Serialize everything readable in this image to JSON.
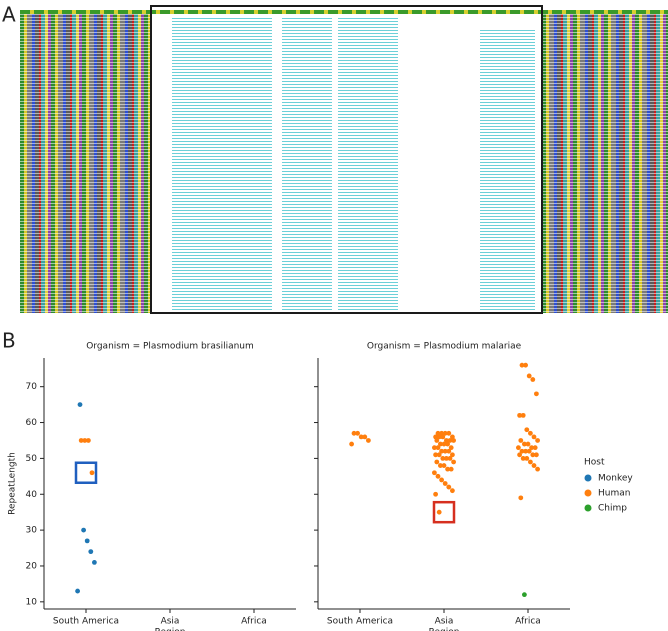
{
  "panel_labels": [
    "A",
    "B"
  ],
  "chart_data": [
    {
      "type": "strip",
      "title": "Organism = Plasmodium brasilianum",
      "categories": [
        "South America",
        "Asia",
        "Africa"
      ],
      "xlabel": "Region",
      "ylabel": "RepeatLength",
      "ylim": [
        8,
        78
      ],
      "yticks": [
        10,
        20,
        30,
        40,
        50,
        60,
        70
      ],
      "series": [
        {
          "name": "Monkey",
          "color": "#1f77b4",
          "x": [
            "South America",
            "South America",
            "South America",
            "South America",
            "South America",
            "South America"
          ],
          "values": [
            65,
            30,
            27,
            24,
            21,
            13
          ]
        },
        {
          "name": "Human",
          "color": "#ff7f0e",
          "x": [
            "South America",
            "South America",
            "South America",
            "South America"
          ],
          "values": [
            55,
            55,
            55,
            46
          ]
        }
      ],
      "highlights": [
        {
          "category": "South America",
          "value": 46,
          "color": "#1f5fbf"
        }
      ]
    },
    {
      "type": "strip",
      "title": "Organism = Plasmodium malariae",
      "categories": [
        "South America",
        "Asia",
        "Africa"
      ],
      "xlabel": "Region",
      "legend_title": "Host",
      "ylim": [
        8,
        78
      ],
      "yticks": [
        10,
        20,
        30,
        40,
        50,
        60,
        70
      ],
      "series": [
        {
          "name": "Monkey",
          "color": "#1f77b4",
          "x": [],
          "values": []
        },
        {
          "name": "Human",
          "color": "#ff7f0e",
          "x": [
            "South America",
            "South America",
            "South America",
            "South America",
            "South America",
            "South America",
            "Asia",
            "Asia",
            "Asia",
            "Asia",
            "Asia",
            "Asia",
            "Asia",
            "Asia",
            "Asia",
            "Asia",
            "Asia",
            "Asia",
            "Asia",
            "Asia",
            "Asia",
            "Asia",
            "Asia",
            "Asia",
            "Asia",
            "Asia",
            "Asia",
            "Asia",
            "Asia",
            "Asia",
            "Asia",
            "Asia",
            "Asia",
            "Asia",
            "Asia",
            "Asia",
            "Asia",
            "Asia",
            "Asia",
            "Asia",
            "Asia",
            "Asia",
            "Asia",
            "Asia",
            "Asia",
            "Asia",
            "Asia",
            "Africa",
            "Africa",
            "Africa",
            "Africa",
            "Africa",
            "Africa",
            "Africa",
            "Africa",
            "Africa",
            "Africa",
            "Africa",
            "Africa",
            "Africa",
            "Africa",
            "Africa",
            "Africa",
            "Africa",
            "Africa",
            "Africa",
            "Africa",
            "Africa",
            "Africa",
            "Africa",
            "Africa",
            "Africa",
            "Africa",
            "Africa",
            "Africa",
            "Africa"
          ],
          "values": [
            57,
            57,
            56,
            56,
            55,
            54,
            57,
            57,
            57,
            57,
            56,
            56,
            56,
            56,
            55,
            55,
            55,
            55,
            54,
            54,
            54,
            53,
            53,
            53,
            52,
            52,
            52,
            51,
            51,
            51,
            50,
            50,
            50,
            49,
            49,
            48,
            48,
            47,
            47,
            46,
            45,
            44,
            43,
            42,
            41,
            40,
            35,
            76,
            76,
            73,
            72,
            68,
            62,
            62,
            58,
            57,
            56,
            55,
            55,
            54,
            54,
            53,
            53,
            53,
            52,
            52,
            52,
            51,
            51,
            51,
            50,
            50,
            49,
            48,
            47,
            39
          ]
        },
        {
          "name": "Chimp",
          "color": "#2ca02c",
          "x": [
            "Africa"
          ],
          "values": [
            12
          ]
        }
      ],
      "highlights": [
        {
          "category": "Asia",
          "value": 35,
          "color": "#d62f1f"
        }
      ]
    }
  ]
}
